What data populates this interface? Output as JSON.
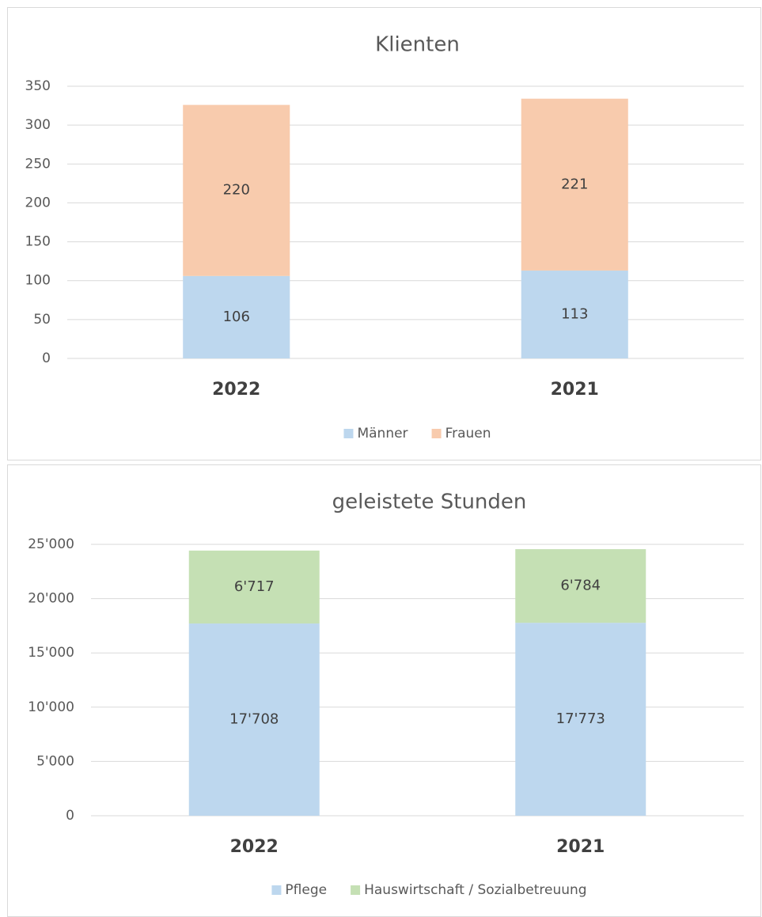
{
  "chart_data": [
    {
      "type": "bar",
      "stacked": true,
      "title": "Klienten",
      "categories": [
        "2022",
        "2021"
      ],
      "series": [
        {
          "name": "Männer",
          "color": "#bdd7ee",
          "values": [
            106,
            113
          ]
        },
        {
          "name": "Frauen",
          "color": "#f8cbad",
          "values": [
            220,
            221
          ]
        }
      ],
      "ylim": [
        0,
        350
      ],
      "yticks": [
        0,
        50,
        100,
        150,
        200,
        250,
        300,
        350
      ],
      "grid": true,
      "legend": "bottom"
    },
    {
      "type": "bar",
      "stacked": true,
      "title": "geleistete Stunden",
      "categories": [
        "2022",
        "2021"
      ],
      "series": [
        {
          "name": "Pflege",
          "color": "#bdd7ee",
          "values": [
            17708,
            17773
          ],
          "value_labels": [
            "17'708",
            "17'773"
          ]
        },
        {
          "name": "Hauswirtschaft / Sozialbetreuung",
          "color": "#c5e0b4",
          "values": [
            6717,
            6784
          ],
          "value_labels": [
            "6'717",
            "6'784"
          ]
        }
      ],
      "ylim": [
        0,
        25000
      ],
      "yticks": [
        0,
        {
          "value": 5000,
          "label": "5'000"
        },
        {
          "value": 10000,
          "label": "10'000"
        },
        {
          "value": 15000,
          "label": "15'000"
        },
        {
          "value": 20000,
          "label": "20'000"
        },
        {
          "value": 25000,
          "label": "25'000"
        }
      ],
      "grid": true,
      "legend": "bottom"
    }
  ]
}
